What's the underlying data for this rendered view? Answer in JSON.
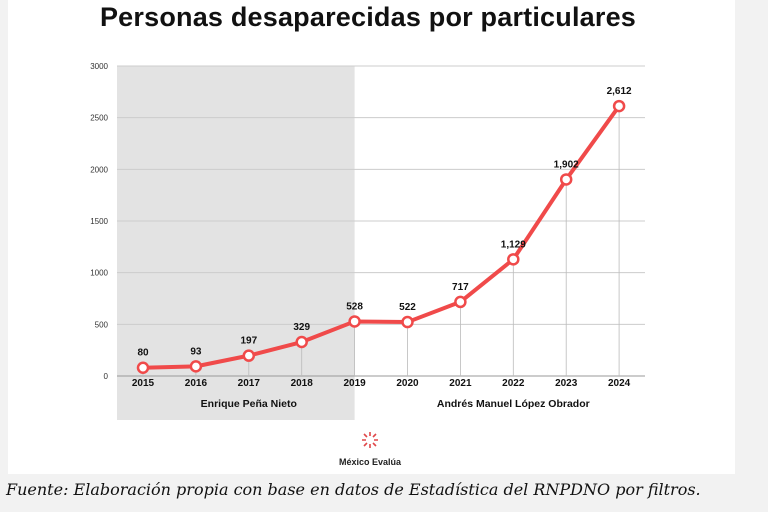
{
  "chart_data": {
    "type": "line",
    "title": "Personas desaparecidas por particulares",
    "categories": [
      "2015",
      "2016",
      "2017",
      "2018",
      "2019",
      "2020",
      "2021",
      "2022",
      "2023",
      "2024"
    ],
    "values": [
      80,
      93,
      197,
      329,
      528,
      522,
      717,
      1129,
      1902,
      2612
    ],
    "data_labels": [
      "80",
      "93",
      "197",
      "329",
      "528",
      "522",
      "717",
      "1,129",
      "1,902",
      "2,612"
    ],
    "y_ticks": [
      "0",
      "500",
      "1000",
      "1500",
      "2000",
      "2500",
      "3000"
    ],
    "ylim": [
      0,
      3000
    ],
    "grid": true,
    "line_color": "#f04a4a",
    "periods": [
      {
        "label": "Enrique Peña Nieto",
        "from": "2015",
        "to": "2019",
        "shaded": true,
        "color": "#e3e3e3"
      },
      {
        "label": "Andrés Manuel López Obrador",
        "from": "2020",
        "to": "2024",
        "shaded": false
      }
    ]
  },
  "logo": {
    "text": "México Evalúa"
  },
  "caption": "Fuente: Elaboración propia con base en datos de Estadística del RNPDNO por filtros."
}
